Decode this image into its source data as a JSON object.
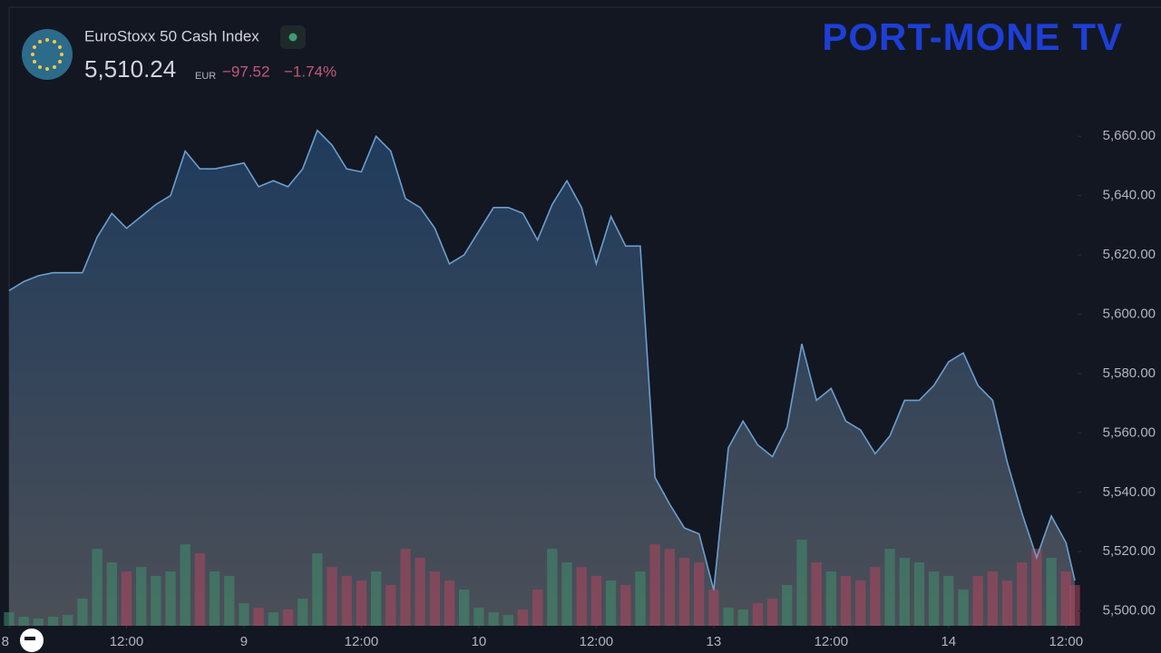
{
  "chart_data": {
    "type": "area",
    "title": "EuroStoxx 50 Cash Index",
    "last_price": "5,510.24",
    "currency": "EUR",
    "change": "−97.52",
    "change_percent": "−1.74%",
    "watermark": "PORT-MONE TV",
    "x": [
      0,
      0.5,
      1,
      1.5,
      2,
      2.5,
      3,
      3.5,
      4,
      4.5,
      5,
      5.5,
      6,
      6.5,
      7,
      7.5,
      8,
      8.5,
      9,
      9.5,
      10,
      10.5,
      11,
      11.5,
      12,
      12.5,
      13,
      13.5,
      14,
      14.5,
      15,
      15.5,
      16,
      16.5,
      17,
      17.5,
      18,
      18.5,
      19,
      19.5,
      20,
      20.5,
      21,
      21.5,
      22,
      22.5,
      23,
      23.5,
      24,
      24.5,
      25,
      25.5,
      26,
      26.5,
      27,
      27.5,
      28,
      28.5,
      29,
      29.5,
      30,
      30.5,
      31,
      31.5,
      32,
      32.5,
      33,
      33.5,
      34,
      34.5,
      35,
      35.5,
      36,
      36.3
    ],
    "xlim": [
      0,
      36.3
    ],
    "xticks": [
      {
        "value": 0,
        "label": "8"
      },
      {
        "value": 4,
        "label": "12:00"
      },
      {
        "value": 8,
        "label": "9"
      },
      {
        "value": 12,
        "label": "12:00"
      },
      {
        "value": 16,
        "label": "10"
      },
      {
        "value": 20,
        "label": "12:00"
      },
      {
        "value": 24,
        "label": "13"
      },
      {
        "value": 28,
        "label": "12:00"
      },
      {
        "value": 32,
        "label": "14"
      },
      {
        "value": 36,
        "label": "12:00"
      }
    ],
    "series": [
      {
        "color": "#6b9fcf",
        "values": [
          5608,
          5611,
          5613,
          5614,
          5614,
          5614,
          5626,
          5634,
          5629,
          5633,
          5637,
          5640,
          5655,
          5649,
          5649,
          5650,
          5651,
          5643,
          5645,
          5643,
          5649,
          5662,
          5657,
          5649,
          5648,
          5660,
          5655,
          5639,
          5636,
          5629,
          5617,
          5620,
          5628,
          5636,
          5636,
          5634,
          5625,
          5637,
          5645,
          5636,
          5617,
          5633,
          5623,
          5623,
          5545,
          5536,
          5528,
          5526,
          5507,
          5555,
          5564,
          5556,
          5552,
          5562,
          5590,
          5571,
          5575,
          5564,
          5561,
          5553,
          5559,
          5571,
          5571,
          5576,
          5584,
          5587,
          5576,
          5571,
          5550,
          5533,
          5518,
          5532,
          5523,
          5510.24
        ]
      }
    ],
    "ylim": [
      5495,
      5672
    ],
    "yticks": [
      {
        "value": 5500,
        "label": "5,500.00"
      },
      {
        "value": 5520,
        "label": "5,520.00"
      },
      {
        "value": 5540,
        "label": "5,540.00"
      },
      {
        "value": 5560,
        "label": "5,560.00"
      },
      {
        "value": 5580,
        "label": "5,580.00"
      },
      {
        "value": 5600,
        "label": "5,600.00"
      },
      {
        "value": 5620,
        "label": "5,620.00"
      },
      {
        "value": 5640,
        "label": "5,640.00"
      },
      {
        "value": 5660,
        "label": "5,660.00"
      }
    ],
    "volume": [
      15,
      10,
      8,
      10,
      12,
      30,
      85,
      70,
      60,
      65,
      55,
      60,
      90,
      80,
      60,
      55,
      25,
      20,
      15,
      18,
      30,
      80,
      65,
      55,
      50,
      60,
      45,
      85,
      75,
      60,
      50,
      40,
      20,
      15,
      12,
      18,
      40,
      85,
      70,
      65,
      55,
      50,
      45,
      60,
      90,
      85,
      75,
      70,
      40,
      20,
      18,
      25,
      30,
      45,
      95,
      70,
      60,
      55,
      50,
      65,
      85,
      75,
      70,
      60,
      55,
      40,
      55,
      60,
      50,
      70,
      85,
      75,
      60,
      45
    ],
    "y2lim": [
      0,
      580
    ],
    "up_color": "#3f8f6e",
    "down_color": "#b0455f"
  }
}
